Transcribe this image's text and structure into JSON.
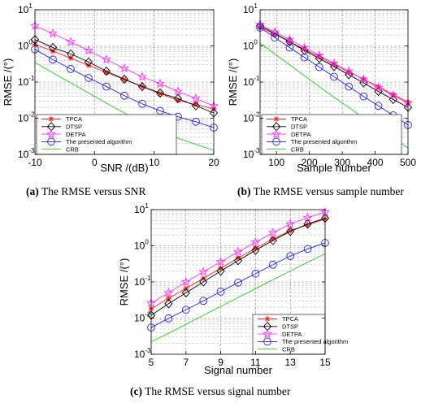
{
  "colors": {
    "TPCA": "#ff2020",
    "DTSP": "#000000",
    "DETPA": "#ff33ff",
    "The presented algorithm": "#2222ee",
    "CRB": "#22cc22"
  },
  "chart_data": [
    {
      "type": "line",
      "caption_tag": "(a)",
      "caption_text": "The RMSE versus SNR",
      "xlabel": "SNR /(dB)",
      "ylabel": "RMSE /(°)",
      "xlim": [
        -10,
        20
      ],
      "ylim": [
        0.001,
        10
      ],
      "yscale": "log",
      "xticks": [
        -10,
        0,
        10,
        20
      ],
      "xtick_labels": [
        "-10",
        "0",
        "10",
        "20"
      ],
      "grid": true,
      "legend_position": "bottom-left",
      "x": [
        -10,
        -7,
        -4,
        -1,
        2,
        5,
        8,
        11,
        14,
        17,
        20
      ],
      "series": [
        {
          "name": "TPCA",
          "marker": "star",
          "values": [
            1.1,
            0.72,
            0.46,
            0.29,
            0.185,
            0.118,
            0.075,
            0.048,
            0.031,
            0.024,
            0.018
          ]
        },
        {
          "name": "DTSP",
          "marker": "diamond",
          "values": [
            1.5,
            0.9,
            0.6,
            0.36,
            0.2,
            0.12,
            0.075,
            0.05,
            0.035,
            0.022,
            0.014
          ]
        },
        {
          "name": "DETPA",
          "marker": "pentagram",
          "values": [
            3.6,
            2.2,
            1.3,
            0.75,
            0.42,
            0.24,
            0.14,
            0.09,
            0.055,
            0.035,
            0.022
          ]
        },
        {
          "name": "The presented algorithm",
          "marker": "circle",
          "values": [
            0.8,
            0.42,
            0.23,
            0.13,
            0.075,
            0.042,
            0.025,
            0.016,
            0.011,
            0.008,
            0.0055
          ]
        },
        {
          "name": "CRB",
          "marker": "none",
          "values": [
            0.35,
            0.18,
            0.095,
            0.05,
            0.026,
            0.014,
            0.0075,
            0.0042,
            0.0028,
            0.0019,
            0.0013
          ]
        }
      ]
    },
    {
      "type": "line",
      "caption_tag": "(b)",
      "caption_text": "The RMSE versus sample number",
      "xlabel": "Sample number",
      "ylabel": "RMSE /(°)",
      "xlim": [
        50,
        500
      ],
      "ylim": [
        0.001,
        10
      ],
      "yscale": "log",
      "xticks": [
        100,
        200,
        300,
        400,
        500
      ],
      "xtick_labels": [
        "100",
        "200",
        "300",
        "400",
        "500"
      ],
      "grid": true,
      "legend_position": "bottom-left",
      "x": [
        50,
        95,
        140,
        185,
        230,
        275,
        320,
        365,
        410,
        455,
        500
      ],
      "series": [
        {
          "name": "TPCA",
          "marker": "star",
          "values": [
            3.3,
            2.1,
            1.3,
            0.8,
            0.5,
            0.3,
            0.19,
            0.12,
            0.075,
            0.045,
            0.028
          ]
        },
        {
          "name": "DTSP",
          "marker": "diamond",
          "values": [
            3.6,
            2.2,
            1.3,
            0.75,
            0.45,
            0.27,
            0.16,
            0.095,
            0.055,
            0.033,
            0.02
          ]
        },
        {
          "name": "DETPA",
          "marker": "pentagram",
          "values": [
            3.9,
            2.4,
            1.5,
            0.9,
            0.55,
            0.33,
            0.2,
            0.12,
            0.07,
            0.043,
            0.026
          ]
        },
        {
          "name": "The presented algorithm",
          "marker": "circle",
          "values": [
            3.2,
            1.7,
            0.9,
            0.48,
            0.26,
            0.14,
            0.075,
            0.04,
            0.022,
            0.012,
            0.0065
          ]
        },
        {
          "name": "CRB",
          "marker": "none",
          "values": [
            1.2,
            0.6,
            0.3,
            0.15,
            0.075,
            0.038,
            0.02,
            0.01,
            0.0052,
            0.0028,
            0.0015
          ]
        }
      ]
    },
    {
      "type": "line",
      "caption_tag": "(c)",
      "caption_text": "The RMSE versus signal number",
      "xlabel": "Signal number",
      "ylabel": "RMSE /(°)",
      "xlim": [
        5,
        15
      ],
      "ylim": [
        0.001,
        10
      ],
      "yscale": "log",
      "xticks": [
        5,
        7,
        9,
        11,
        13,
        15
      ],
      "xtick_labels": [
        "5",
        "7",
        "9",
        "11",
        "13",
        "15"
      ],
      "grid": true,
      "legend_position": "bottom-right",
      "x": [
        5,
        6,
        7,
        8,
        9,
        10,
        11,
        12,
        13,
        14,
        15
      ],
      "series": [
        {
          "name": "TPCA",
          "marker": "star",
          "values": [
            0.018,
            0.035,
            0.066,
            0.125,
            0.24,
            0.46,
            0.85,
            1.55,
            2.6,
            3.8,
            5.5
          ]
        },
        {
          "name": "DTSP",
          "marker": "diamond",
          "values": [
            0.012,
            0.025,
            0.05,
            0.1,
            0.2,
            0.39,
            0.75,
            1.4,
            2.5,
            4.0,
            5.8
          ]
        },
        {
          "name": "DETPA",
          "marker": "pentagram",
          "values": [
            0.026,
            0.05,
            0.1,
            0.19,
            0.36,
            0.68,
            1.25,
            2.3,
            4.0,
            6.0,
            8.5
          ]
        },
        {
          "name": "The presented algorithm",
          "marker": "circle",
          "values": [
            0.0055,
            0.0098,
            0.017,
            0.03,
            0.054,
            0.096,
            0.17,
            0.3,
            0.52,
            0.82,
            1.2
          ]
        },
        {
          "name": "CRB",
          "marker": "none",
          "values": [
            0.0022,
            0.0038,
            0.0067,
            0.012,
            0.021,
            0.037,
            0.065,
            0.115,
            0.2,
            0.35,
            0.6
          ]
        }
      ]
    }
  ]
}
